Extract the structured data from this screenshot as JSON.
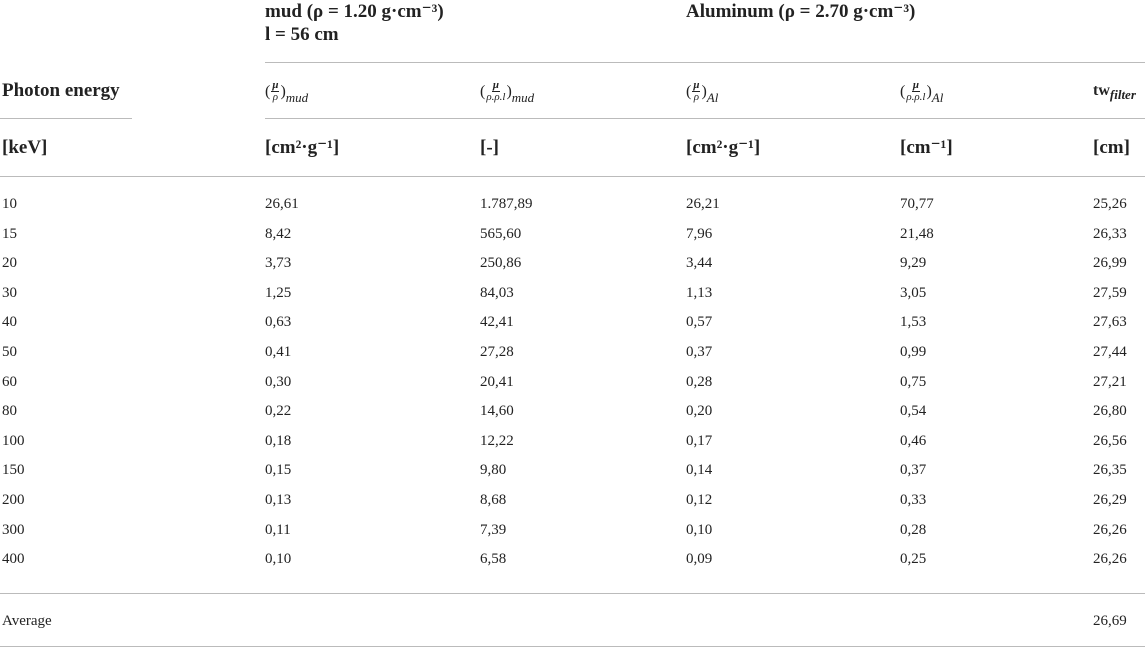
{
  "table": {
    "groups": [
      {
        "lines": [
          "mud (ρ = 1.20 g·cm⁻³)",
          "l = 56 cm"
        ]
      },
      {
        "lines": [
          "Aluminum (ρ = 2.70 g·cm⁻³)"
        ]
      }
    ],
    "row_header": "Photon energy",
    "symbols": [
      {
        "open": "(",
        "numerator": "μ",
        "denominator": "ρ",
        "close": ")",
        "subscript": "mud"
      },
      {
        "open": "(",
        "numerator": "μ",
        "denominator": "ρ.ρ.l",
        "close": ")",
        "subscript": "mud"
      },
      {
        "open": "(",
        "numerator": "μ",
        "denominator": "ρ",
        "close": ")",
        "subscript": "Al"
      },
      {
        "open": "(",
        "numerator": "μ",
        "denominator": "ρ.ρ.l",
        "close": ")",
        "subscript": "Al"
      },
      {
        "base": "tw",
        "subscript": "filter"
      }
    ],
    "units": [
      "[keV]",
      "[cm²·g⁻¹]",
      "[-]",
      "[cm²·g⁻¹]",
      "[cm⁻¹]",
      "[cm]"
    ],
    "rows": [
      [
        "10",
        "26,61",
        "1.787,89",
        "26,21",
        "70,77",
        "25,26"
      ],
      [
        "15",
        "8,42",
        "565,60",
        "7,96",
        "21,48",
        "26,33"
      ],
      [
        "20",
        "3,73",
        "250,86",
        "3,44",
        "9,29",
        "26,99"
      ],
      [
        "30",
        "1,25",
        "84,03",
        "1,13",
        "3,05",
        "27,59"
      ],
      [
        "40",
        "0,63",
        "42,41",
        "0,57",
        "1,53",
        "27,63"
      ],
      [
        "50",
        "0,41",
        "27,28",
        "0,37",
        "0,99",
        "27,44"
      ],
      [
        "60",
        "0,30",
        "20,41",
        "0,28",
        "0,75",
        "27,21"
      ],
      [
        "80",
        "0,22",
        "14,60",
        "0,20",
        "0,54",
        "26,80"
      ],
      [
        "100",
        "0,18",
        "12,22",
        "0,17",
        "0,46",
        "26,56"
      ],
      [
        "150",
        "0,15",
        "9,80",
        "0,14",
        "0,37",
        "26,35"
      ],
      [
        "200",
        "0,13",
        "8,68",
        "0,12",
        "0,33",
        "26,29"
      ],
      [
        "300",
        "0,11",
        "7,39",
        "0,10",
        "0,28",
        "26,26"
      ],
      [
        "400",
        "0,10",
        "6,58",
        "0,09",
        "0,25",
        "26,26"
      ]
    ],
    "footer": {
      "label": "Average",
      "value": "26,69"
    }
  }
}
